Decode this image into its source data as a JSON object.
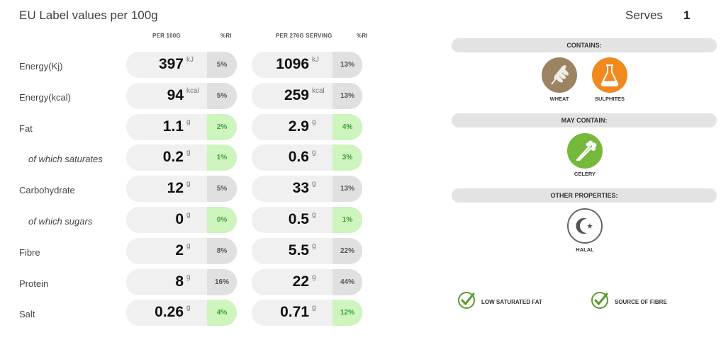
{
  "header": {
    "title": "EU Label values per 100g",
    "serves_label": "Serves",
    "serves_value": "1"
  },
  "columns": {
    "per100": "PER 100G",
    "ri1": "%RI",
    "perServing": "PER 276G SERVING",
    "ri2": "%RI"
  },
  "rows": [
    {
      "label": "Energy(Kj)",
      "v1": "397",
      "u1": "kJ",
      "r1": "5%",
      "g1": false,
      "v2": "1096",
      "u2": "kJ",
      "r2": "13%",
      "g2": false
    },
    {
      "label": "Energy(kcal)",
      "v1": "94",
      "u1": "kcal",
      "r1": "5%",
      "g1": false,
      "v2": "259",
      "u2": "kcal",
      "r2": "13%",
      "g2": false
    },
    {
      "label": "Fat",
      "v1": "1.1",
      "u1": "g",
      "r1": "2%",
      "g1": true,
      "v2": "2.9",
      "u2": "g",
      "r2": "4%",
      "g2": true
    },
    {
      "label": "of which saturates",
      "v1": "0.2",
      "u1": "g",
      "r1": "1%",
      "g1": true,
      "v2": "0.6",
      "u2": "g",
      "r2": "3%",
      "g2": true
    },
    {
      "label": "Carbohydrate",
      "v1": "12",
      "u1": "g",
      "r1": "5%",
      "g1": false,
      "v2": "33",
      "u2": "g",
      "r2": "13%",
      "g2": false
    },
    {
      "label": "of which sugars",
      "v1": "0",
      "u1": "g",
      "r1": "0%",
      "g1": true,
      "v2": "0.5",
      "u2": "g",
      "r2": "1%",
      "g2": true
    },
    {
      "label": "Fibre",
      "v1": "2",
      "u1": "g",
      "r1": "8%",
      "g1": false,
      "v2": "5.5",
      "u2": "g",
      "r2": "22%",
      "g2": false
    },
    {
      "label": "Protein",
      "v1": "8",
      "u1": "g",
      "r1": "16%",
      "g1": false,
      "v2": "22",
      "u2": "g",
      "r2": "44%",
      "g2": false
    },
    {
      "label": "Salt",
      "v1": "0.26",
      "u1": "g",
      "r1": "4%",
      "g1": true,
      "v2": "0.71",
      "u2": "g",
      "r2": "12%",
      "g2": true
    }
  ],
  "allergens": {
    "contains_title": "CONTAINS:",
    "contains": [
      {
        "label": "WHEAT",
        "icon": "wheat-icon",
        "color": "#9c8463"
      },
      {
        "label": "SULPHITES",
        "icon": "flask-icon",
        "color": "#f2891e"
      }
    ],
    "may_contain_title": "MAY CONTAIN:",
    "may_contain": [
      {
        "label": "CELERY",
        "icon": "celery-icon",
        "color": "#74b93b"
      }
    ],
    "other_title": "OTHER PROPERTIES:",
    "other": [
      {
        "label": "HALAL",
        "icon": "crescent-star-icon",
        "color": "#ffffff"
      }
    ],
    "sulphite_symbol": "SO2"
  },
  "properties": [
    {
      "label": "LOW SATURATED FAT",
      "icon": "check-icon",
      "color": "#5a9a2a"
    },
    {
      "label": "SOURCE OF FIBRE",
      "icon": "check-icon",
      "color": "#5a9a2a"
    }
  ]
}
